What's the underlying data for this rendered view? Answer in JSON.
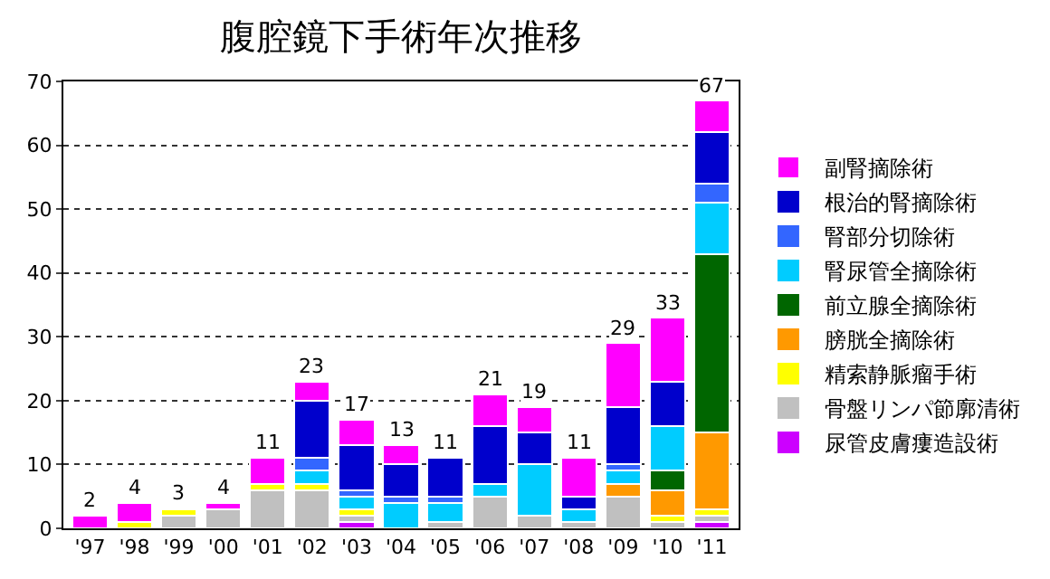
{
  "chart_data": {
    "type": "bar",
    "title": "腹腔鏡下手術年次推移",
    "stacked": true,
    "categories": [
      "'97",
      "'98",
      "'99",
      "'00",
      "'01",
      "'02",
      "'03",
      "'04",
      "'05",
      "'06",
      "'07",
      "'08",
      "'09",
      "'10",
      "'11"
    ],
    "series": [
      {
        "name": "尿管皮膚瘻造設術",
        "color": "#cc00ff",
        "values": [
          0,
          0,
          0,
          0,
          0,
          0,
          1,
          0,
          0,
          0,
          0,
          0,
          0,
          0,
          1
        ]
      },
      {
        "name": "骨盤リンパ節廓清術",
        "color": "#c0c0c0",
        "values": [
          0,
          0,
          2,
          3,
          6,
          6,
          1,
          0,
          1,
          5,
          2,
          1,
          5,
          1,
          1
        ]
      },
      {
        "name": "精索静脈瘤手術",
        "color": "#ffff00",
        "values": [
          0,
          1,
          1,
          0,
          1,
          1,
          1,
          0,
          0,
          0,
          0,
          0,
          0,
          1,
          1
        ]
      },
      {
        "name": "膀胱全摘除術",
        "color": "#ff9900",
        "values": [
          0,
          0,
          0,
          0,
          0,
          0,
          0,
          0,
          0,
          0,
          0,
          0,
          2,
          4,
          12
        ]
      },
      {
        "name": "前立腺全摘除術",
        "color": "#006600",
        "values": [
          0,
          0,
          0,
          0,
          0,
          0,
          0,
          0,
          0,
          0,
          0,
          0,
          0,
          3,
          28
        ]
      },
      {
        "name": "腎尿管全摘除術",
        "color": "#00ccff",
        "values": [
          0,
          0,
          0,
          0,
          0,
          2,
          2,
          4,
          3,
          2,
          8,
          2,
          2,
          7,
          8
        ]
      },
      {
        "name": "腎部分切除術",
        "color": "#3366ff",
        "values": [
          0,
          0,
          0,
          0,
          0,
          2,
          1,
          1,
          1,
          0,
          0,
          0,
          1,
          0,
          3
        ]
      },
      {
        "name": "根治的腎摘除術",
        "color": "#0000cc",
        "values": [
          0,
          0,
          0,
          0,
          0,
          9,
          7,
          5,
          6,
          9,
          5,
          2,
          9,
          7,
          8
        ]
      },
      {
        "name": "副腎摘除術",
        "color": "#ff00ff",
        "values": [
          2,
          3,
          0,
          1,
          4,
          3,
          4,
          3,
          0,
          5,
          4,
          6,
          10,
          10,
          5
        ]
      }
    ],
    "totals": [
      "2",
      "4",
      "3",
      "4",
      "11",
      "23",
      "17",
      "13",
      "11",
      "21",
      "19",
      "11",
      "29",
      "33",
      "67"
    ],
    "ylim": [
      0,
      70
    ],
    "yticks": [
      0,
      10,
      20,
      30,
      40,
      50,
      60,
      70
    ],
    "grid": "y",
    "legend": "right"
  }
}
